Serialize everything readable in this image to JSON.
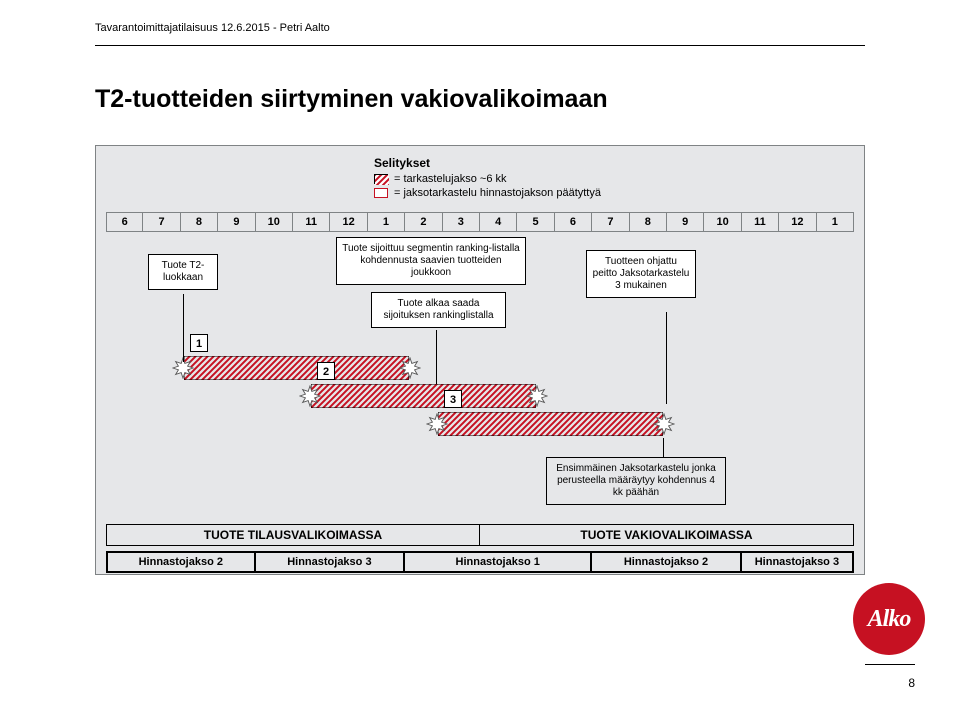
{
  "meta": {
    "header": "Tavarantoimittajatilaisuus 12.6.2015 - Petri Aalto",
    "page_number": "8",
    "logo_text": "Alko",
    "logo_bg": "#c61122"
  },
  "title": "T2-tuotteiden siirtyminen vakiovalikoimaan",
  "colors": {
    "panel_bg": "#e6e7e9",
    "border": "#7f8385",
    "hatch_red": "#c61122",
    "star_fill": "#ffffff",
    "star_stroke": "#444444",
    "text": "#000000"
  },
  "legend": {
    "title": "Selitykset",
    "items": [
      {
        "swatch": "red-hatch",
        "label": "= tarkastelujakso ~6 kk"
      },
      {
        "swatch": "red-border",
        "label": "= jaksotarkastelu hinnastojakson päätyttyä"
      }
    ]
  },
  "months": [
    "6",
    "7",
    "8",
    "9",
    "10",
    "11",
    "12",
    "1",
    "2",
    "3",
    "4",
    "5",
    "6",
    "7",
    "8",
    "9",
    "10",
    "11",
    "12",
    "1"
  ],
  "callouts": {
    "left": "Tuote T2-luokkaan",
    "center_top": "Tuote sijoittuu segmentin ranking-listalla kohdennusta saavien tuotteiden joukkoon",
    "center_bottom": "Tuote alkaa saada sijoituksen rankinglistalla",
    "right": "Tuotteen ohjattu peitto Jaksotarkastelu 3 mukainen"
  },
  "bars": {
    "labels": [
      "1",
      "2",
      "3"
    ]
  },
  "ensi_box": "Ensimmäinen Jaksotarkastelu jonka perusteella määräytyy kohdennus 4 kk päähän",
  "phase_row": [
    "TUOTE TILAUSVALIKOIMASSA",
    "TUOTE VAKIOVALIKOIMASSA"
  ],
  "jakso_row": {
    "columns": "4fr 4fr 5fr 4fr 3fr",
    "labels": [
      "Hinnastojakso 2",
      "Hinnastojakso 3",
      "Hinnastojakso 1",
      "Hinnastojakso 2",
      "Hinnastojakso 3"
    ]
  }
}
